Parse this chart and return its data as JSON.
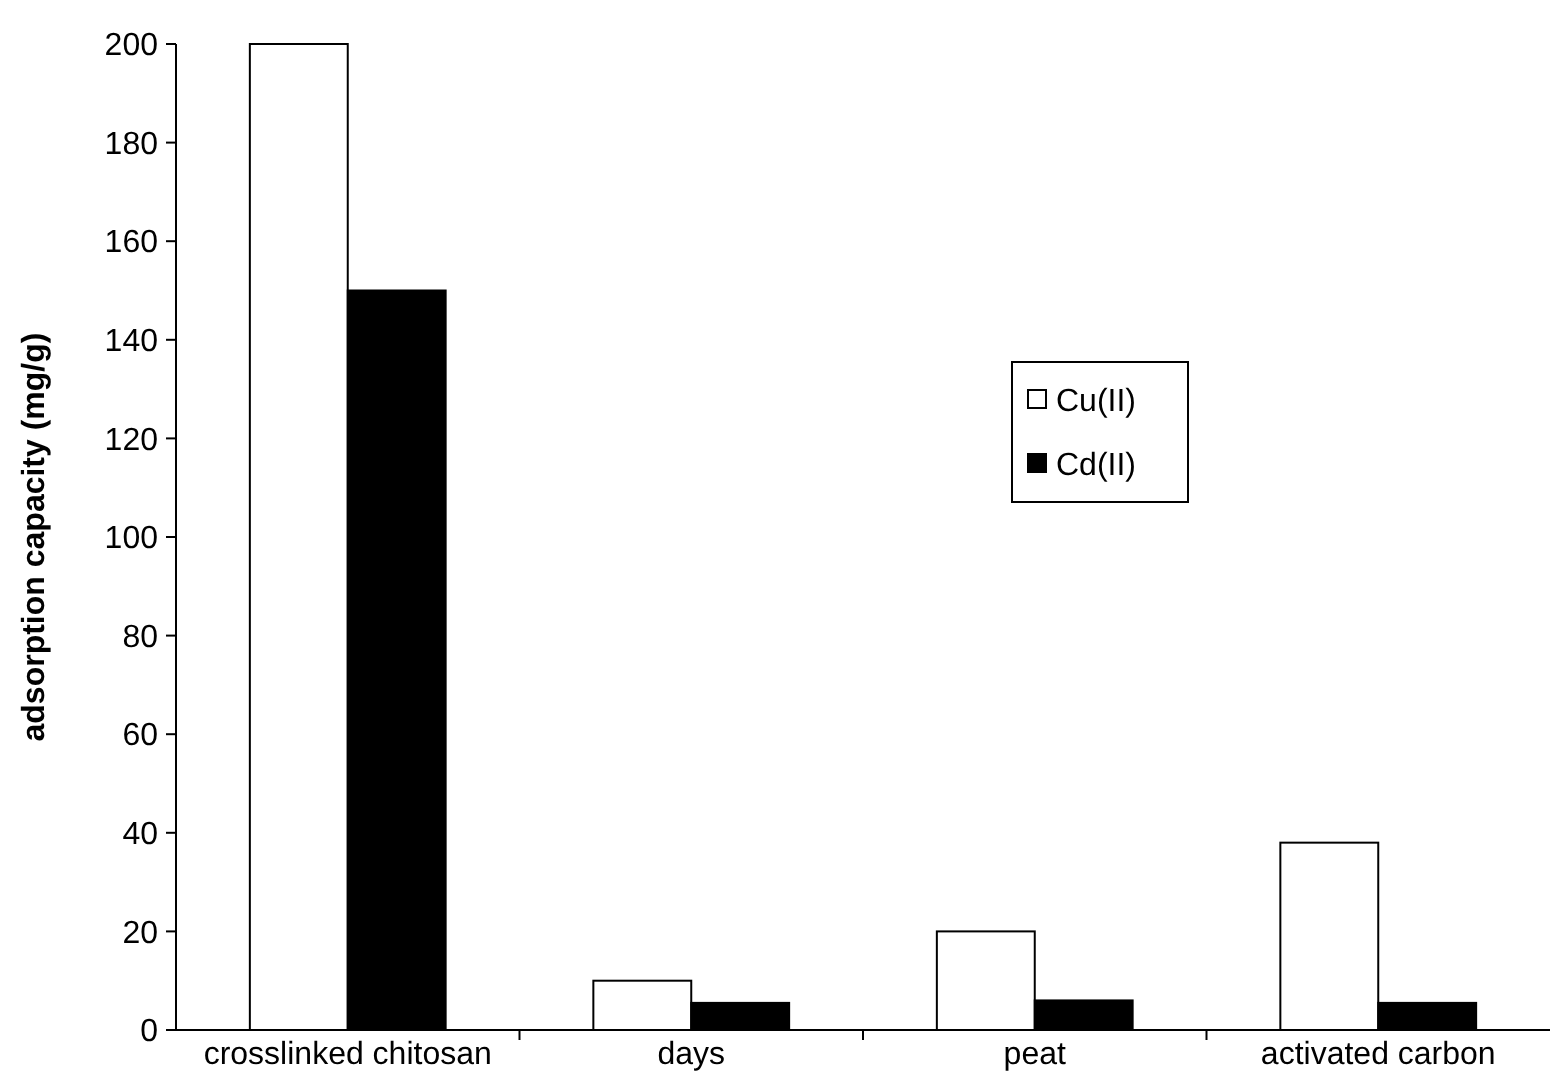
{
  "chart_data": {
    "type": "bar",
    "ylabel": "adsorption capacity (mg/g)",
    "categories": [
      "crosslinked chitosan",
      "days",
      "peat",
      "activated carbon"
    ],
    "series": [
      {
        "name": "Cu(II)",
        "color": "#ffffff",
        "values": [
          200,
          10,
          20,
          38
        ]
      },
      {
        "name": "Cd(II)",
        "color": "#000000",
        "values": [
          150,
          5.5,
          6,
          5.5
        ]
      }
    ],
    "ylim": [
      0,
      200
    ],
    "yticks": [
      0,
      20,
      40,
      60,
      80,
      100,
      120,
      140,
      160,
      180,
      200
    ],
    "grid": false,
    "legend": "right"
  }
}
